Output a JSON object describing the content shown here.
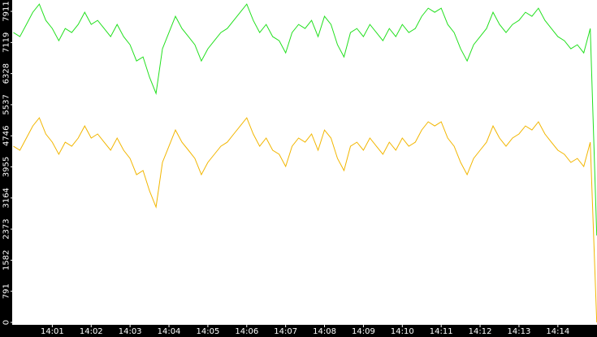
{
  "chart_data": {
    "type": "line",
    "categories": [
      null,
      null,
      null,
      null,
      null,
      null,
      "14:01",
      null,
      null,
      null,
      null,
      null,
      "14:02",
      null,
      null,
      null,
      null,
      null,
      "14:03",
      null,
      null,
      null,
      null,
      null,
      "14:04",
      null,
      null,
      null,
      null,
      null,
      "14:05",
      null,
      null,
      null,
      null,
      null,
      "14:06",
      null,
      null,
      null,
      null,
      null,
      "14:07",
      null,
      null,
      null,
      null,
      null,
      "14:08",
      null,
      null,
      null,
      null,
      null,
      "14:09",
      null,
      null,
      null,
      null,
      null,
      "14:10",
      null,
      null,
      null,
      null,
      null,
      "14:11",
      null,
      null,
      null,
      null,
      null,
      "14:12",
      null,
      null,
      null,
      null,
      null,
      "14:13",
      null,
      null,
      null,
      null,
      null,
      "14:14",
      null,
      null,
      null,
      null,
      null,
      null
    ],
    "series": [
      {
        "color": "#22e01e",
        "values": [
          7372,
          7269,
          7579,
          7888,
          8095,
          7682,
          7475,
          7166,
          7475,
          7372,
          7579,
          7888,
          7579,
          7682,
          7475,
          7269,
          7579,
          7269,
          7062,
          6649,
          6753,
          6236,
          5823,
          6959,
          7372,
          7785,
          7475,
          7269,
          7062,
          6649,
          6959,
          7166,
          7372,
          7475,
          7682,
          7888,
          8095,
          7682,
          7372,
          7579,
          7269,
          7166,
          6856,
          7372,
          7579,
          7475,
          7682,
          7269,
          7785,
          7579,
          7062,
          6753,
          7372,
          7475,
          7269,
          7579,
          7372,
          7166,
          7475,
          7269,
          7579,
          7372,
          7475,
          7785,
          7992,
          7888,
          7992,
          7579,
          7372,
          6959,
          6649,
          7062,
          7269,
          7475,
          7888,
          7579,
          7372,
          7579,
          7682,
          7888,
          7785,
          7992,
          7682,
          7475,
          7269,
          7166,
          6959,
          7062,
          6856,
          7475,
          2210
        ]
      },
      {
        "color": "#f2b600",
        "values": [
          4481,
          4378,
          4688,
          4997,
          5204,
          4791,
          4584,
          4275,
          4584,
          4481,
          4688,
          4997,
          4688,
          4791,
          4584,
          4378,
          4688,
          4378,
          4171,
          3758,
          3862,
          3345,
          2932,
          4068,
          4481,
          4894,
          4584,
          4378,
          4171,
          3758,
          4068,
          4275,
          4481,
          4584,
          4791,
          4997,
          5204,
          4791,
          4481,
          4688,
          4378,
          4275,
          3965,
          4481,
          4688,
          4584,
          4791,
          4378,
          4894,
          4688,
          4171,
          3862,
          4481,
          4584,
          4378,
          4688,
          4481,
          4275,
          4584,
          4378,
          4688,
          4481,
          4584,
          4894,
          5101,
          4997,
          5101,
          4688,
          4481,
          4068,
          3758,
          4171,
          4378,
          4584,
          4997,
          4688,
          4481,
          4688,
          4791,
          4997,
          4894,
          5101,
          4791,
          4584,
          4378,
          4275,
          4068,
          4171,
          3965,
          4584,
          0
        ]
      }
    ],
    "ylim": [
      0,
      8200
    ],
    "yticks": [
      0,
      791,
      1582,
      2373,
      3164,
      3955,
      4746,
      5537,
      6328,
      7119,
      7911
    ]
  }
}
